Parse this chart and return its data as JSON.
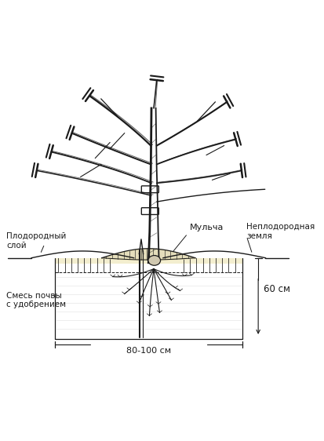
{
  "bg_color": "#ffffff",
  "line_color": "#1a1a1a",
  "labels": {
    "mulch": "Мульча",
    "fertile_layer": "Плодородный\nслой",
    "infertile_soil": "Неплодородная\nземля",
    "soil_mix": "Смесь почвы\nс удобрением",
    "depth": "60 см",
    "width": "80-100 см"
  },
  "figsize": [
    4.13,
    5.62
  ],
  "dpi": 100
}
